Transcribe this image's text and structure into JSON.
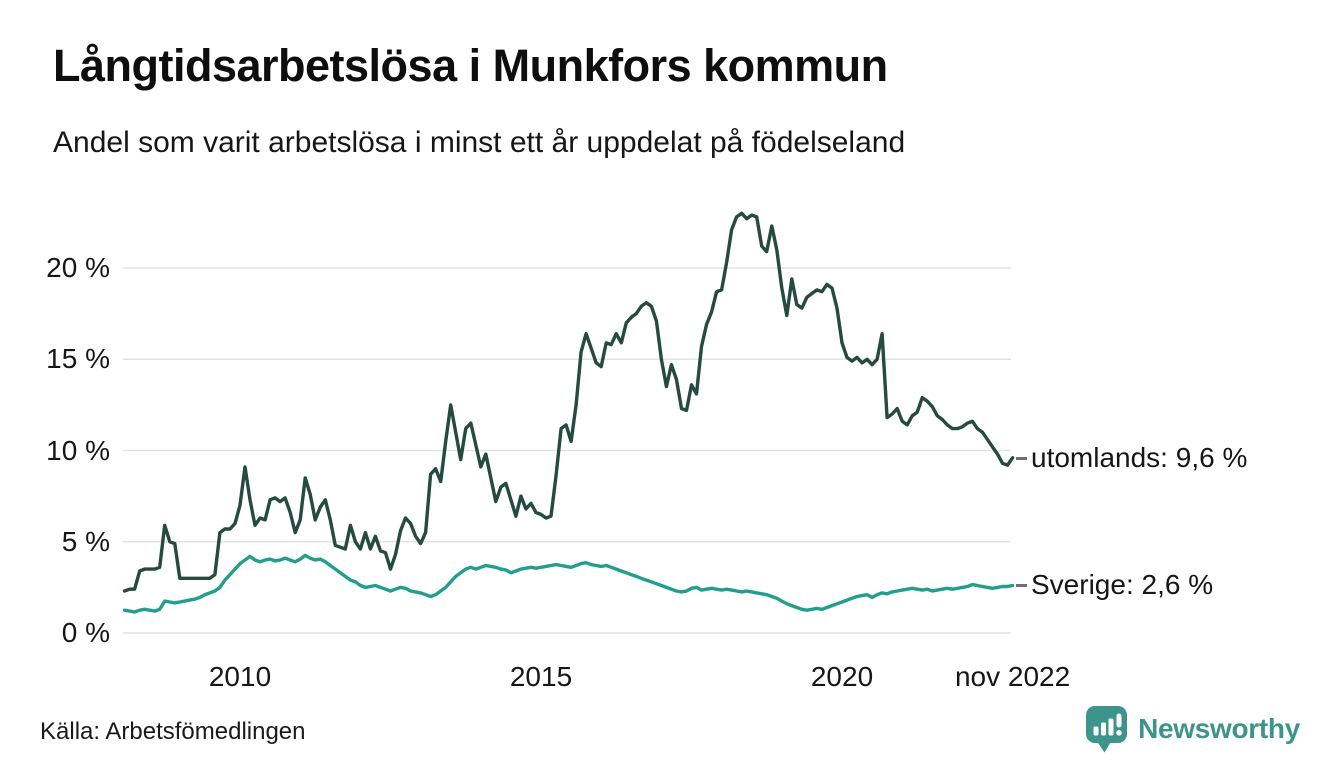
{
  "header": {
    "title": "Långtidsarbetslösa i Munkfors kommun",
    "subtitle": "Andel som varit arbetslösa i minst ett år uppdelat på födelseland"
  },
  "footer": {
    "source": "Källa: Arbetsfömedlingen",
    "brand": "Newsworthy"
  },
  "colors": {
    "utomlands_line": "#254b40",
    "sverige_line": "#229e8d",
    "grid": "#e3e3e3",
    "brand_teal": "#3d948a",
    "text": "#161616",
    "connector_dash": "#6f6f6f"
  },
  "chart_data": {
    "type": "line",
    "title": "Långtidsarbetslösa i Munkfors kommun",
    "subtitle": "Andel som varit arbetslösa i minst ett år uppdelat på födelseland",
    "unit": "%",
    "x_start": 2008.0833,
    "x_step_months": 1,
    "xlim": [
      2008.0,
      2023.0
    ],
    "ylim": [
      0,
      23.5
    ],
    "grid": "horizontal",
    "legend_position": "right-end-labels",
    "y_axis": {
      "ticks": [
        {
          "value": 0,
          "label": "0 %"
        },
        {
          "value": 5,
          "label": "5 %"
        },
        {
          "value": 10,
          "label": "10 %"
        },
        {
          "value": 15,
          "label": "15 %"
        },
        {
          "value": 20,
          "label": "20 %"
        }
      ]
    },
    "x_axis": {
      "ticks": [
        {
          "value": 2010,
          "label": "2010"
        },
        {
          "value": 2015,
          "label": "2015"
        },
        {
          "value": 2020,
          "label": "2020"
        },
        {
          "value": 2022.8333,
          "label": "nov 2022"
        }
      ]
    },
    "series": [
      {
        "name": "utomlands",
        "end_label": "utomlands: 9,6 %",
        "last_value": "9,6 %",
        "color": "#254b40",
        "values": [
          2.3,
          2.4,
          2.4,
          3.4,
          3.5,
          3.5,
          3.5,
          3.6,
          5.9,
          5.0,
          4.9,
          3.0,
          3.0,
          3.0,
          3.0,
          3.0,
          3.0,
          3.0,
          3.2,
          5.5,
          5.7,
          5.7,
          6.0,
          7.0,
          9.1,
          7.3,
          5.9,
          6.3,
          6.2,
          7.3,
          7.4,
          7.2,
          7.4,
          6.6,
          5.5,
          6.2,
          8.5,
          7.6,
          6.2,
          6.9,
          7.3,
          6.2,
          4.8,
          4.7,
          4.6,
          5.9,
          5.0,
          4.6,
          5.5,
          4.6,
          5.3,
          4.5,
          4.4,
          3.5,
          4.3,
          5.6,
          6.3,
          6.0,
          5.3,
          4.9,
          5.5,
          8.7,
          9.0,
          8.3,
          10.5,
          12.5,
          11.0,
          9.5,
          11.2,
          11.5,
          10.3,
          9.1,
          9.8,
          8.5,
          7.2,
          8.0,
          8.2,
          7.3,
          6.4,
          7.5,
          6.8,
          7.1,
          6.6,
          6.5,
          6.3,
          6.4,
          8.6,
          11.2,
          11.4,
          10.5,
          12.5,
          15.4,
          16.4,
          15.6,
          14.8,
          14.6,
          15.9,
          15.8,
          16.4,
          15.9,
          17.0,
          17.3,
          17.5,
          17.9,
          18.1,
          17.9,
          17.1,
          15.0,
          13.5,
          14.7,
          13.9,
          12.3,
          12.2,
          13.6,
          13.1,
          15.7,
          16.9,
          17.6,
          18.7,
          18.8,
          20.3,
          22.1,
          22.8,
          23.0,
          22.7,
          22.9,
          22.8,
          21.2,
          20.9,
          22.3,
          21.0,
          18.9,
          17.4,
          19.4,
          18.0,
          17.8,
          18.4,
          18.6,
          18.8,
          18.7,
          19.1,
          18.9,
          17.8,
          15.9,
          15.1,
          14.9,
          15.1,
          14.8,
          15.0,
          14.7,
          15.0,
          16.4,
          11.8,
          12.0,
          12.3,
          11.6,
          11.4,
          11.9,
          12.1,
          12.9,
          12.7,
          12.4,
          11.9,
          11.7,
          11.4,
          11.2,
          11.2,
          11.3,
          11.5,
          11.6,
          11.2,
          11.0,
          10.6,
          10.2,
          9.8,
          9.3,
          9.2,
          9.6
        ]
      },
      {
        "name": "Sverige",
        "end_label": "Sverige: 2,6 %",
        "last_value": "2,6 %",
        "color": "#229e8d",
        "values": [
          1.25,
          1.2,
          1.15,
          1.25,
          1.3,
          1.25,
          1.2,
          1.3,
          1.75,
          1.7,
          1.65,
          1.7,
          1.75,
          1.8,
          1.85,
          1.95,
          2.1,
          2.2,
          2.3,
          2.5,
          2.9,
          3.2,
          3.5,
          3.8,
          4.0,
          4.2,
          4.0,
          3.9,
          4.0,
          4.05,
          3.95,
          4.0,
          4.1,
          4.0,
          3.9,
          4.05,
          4.25,
          4.1,
          4.0,
          4.05,
          3.9,
          3.7,
          3.5,
          3.3,
          3.1,
          2.9,
          2.8,
          2.6,
          2.5,
          2.55,
          2.6,
          2.5,
          2.4,
          2.3,
          2.4,
          2.5,
          2.45,
          2.3,
          2.25,
          2.2,
          2.1,
          2.0,
          2.1,
          2.3,
          2.5,
          2.8,
          3.1,
          3.3,
          3.5,
          3.6,
          3.5,
          3.6,
          3.7,
          3.65,
          3.6,
          3.5,
          3.45,
          3.3,
          3.4,
          3.5,
          3.55,
          3.6,
          3.55,
          3.6,
          3.65,
          3.7,
          3.75,
          3.7,
          3.65,
          3.6,
          3.7,
          3.8,
          3.85,
          3.75,
          3.7,
          3.65,
          3.7,
          3.6,
          3.5,
          3.4,
          3.3,
          3.2,
          3.1,
          3.0,
          2.9,
          2.8,
          2.7,
          2.6,
          2.5,
          2.4,
          2.3,
          2.25,
          2.3,
          2.45,
          2.5,
          2.35,
          2.4,
          2.45,
          2.4,
          2.35,
          2.4,
          2.35,
          2.3,
          2.25,
          2.3,
          2.25,
          2.2,
          2.15,
          2.1,
          2.0,
          1.9,
          1.75,
          1.6,
          1.5,
          1.4,
          1.3,
          1.25,
          1.3,
          1.35,
          1.3,
          1.4,
          1.5,
          1.6,
          1.7,
          1.8,
          1.9,
          2.0,
          2.05,
          2.1,
          1.95,
          2.1,
          2.2,
          2.15,
          2.25,
          2.3,
          2.35,
          2.4,
          2.45,
          2.4,
          2.35,
          2.4,
          2.3,
          2.35,
          2.4,
          2.45,
          2.4,
          2.45,
          2.5,
          2.55,
          2.65,
          2.6,
          2.55,
          2.5,
          2.45,
          2.5,
          2.55,
          2.55,
          2.6
        ]
      }
    ]
  }
}
